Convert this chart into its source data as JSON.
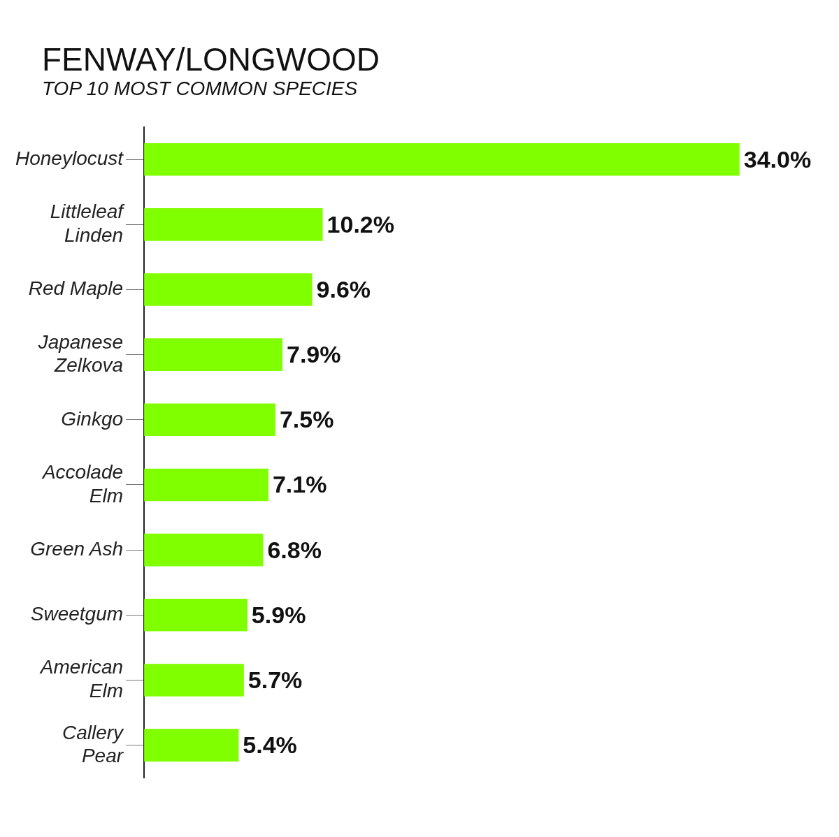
{
  "chart_data": {
    "type": "bar",
    "orientation": "horizontal",
    "title": "FENWAY/LONGWOOD",
    "subtitle": "TOP 10 MOST COMMON SPECIES",
    "categories": [
      "Honeylocust",
      "Littleleaf Linden",
      "Red Maple",
      "Japanese Zelkova",
      "Ginkgo",
      "Accolade Elm",
      "Green Ash",
      "Sweetgum",
      "American Elm",
      "Callery Pear"
    ],
    "values": [
      34.0,
      10.2,
      9.6,
      7.9,
      7.5,
      7.1,
      6.8,
      5.9,
      5.7,
      5.4
    ],
    "value_labels": [
      "34.0%",
      "10.2%",
      "9.6%",
      "7.9%",
      "7.5%",
      "7.1%",
      "6.8%",
      "5.9%",
      "5.7%",
      "5.4%"
    ],
    "color": "#80ff00",
    "tick_labels": "y"
  }
}
